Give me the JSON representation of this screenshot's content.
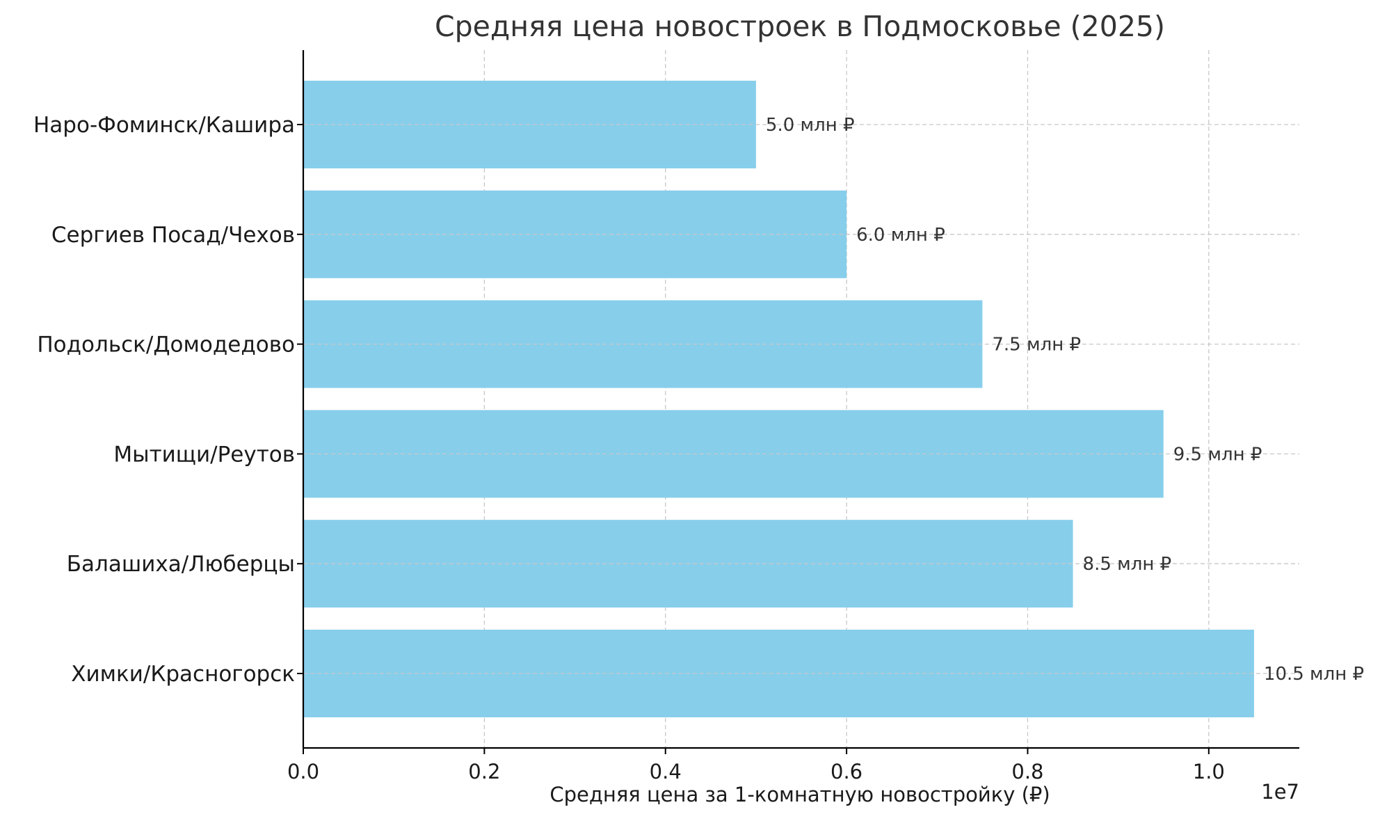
{
  "chart_data": {
    "type": "bar",
    "orientation": "horizontal",
    "title": "Средняя цена новостроек в Подмосковье (2025)",
    "xlabel": "Средняя цена за 1-комнатную новостройку (₽)",
    "ylabel": "",
    "offset_label": "1e7",
    "categories": [
      "Химки/Красногорск",
      "Балашиха/Люберцы",
      "Мытищи/Реутов",
      "Подольск/Домодедово",
      "Сергиев Посад/Чехов",
      "Наро-Фоминск/Кашира"
    ],
    "values": [
      10500000,
      8500000,
      9500000,
      7500000,
      6000000,
      5000000
    ],
    "data_labels": [
      "10.5 млн ₽",
      "8.5 млн ₽",
      "9.5 млн ₽",
      "7.5 млн ₽",
      "6.0 млн ₽",
      "5.0 млн ₽"
    ],
    "xlim": [
      0,
      11000000
    ],
    "xticks": [
      0,
      2000000,
      4000000,
      6000000,
      8000000,
      10000000
    ],
    "xtick_labels": [
      "0.0",
      "0.2",
      "0.4",
      "0.6",
      "0.8",
      "1.0"
    ],
    "grid": true,
    "bar_color": "#87CEEB",
    "legend": "none"
  }
}
